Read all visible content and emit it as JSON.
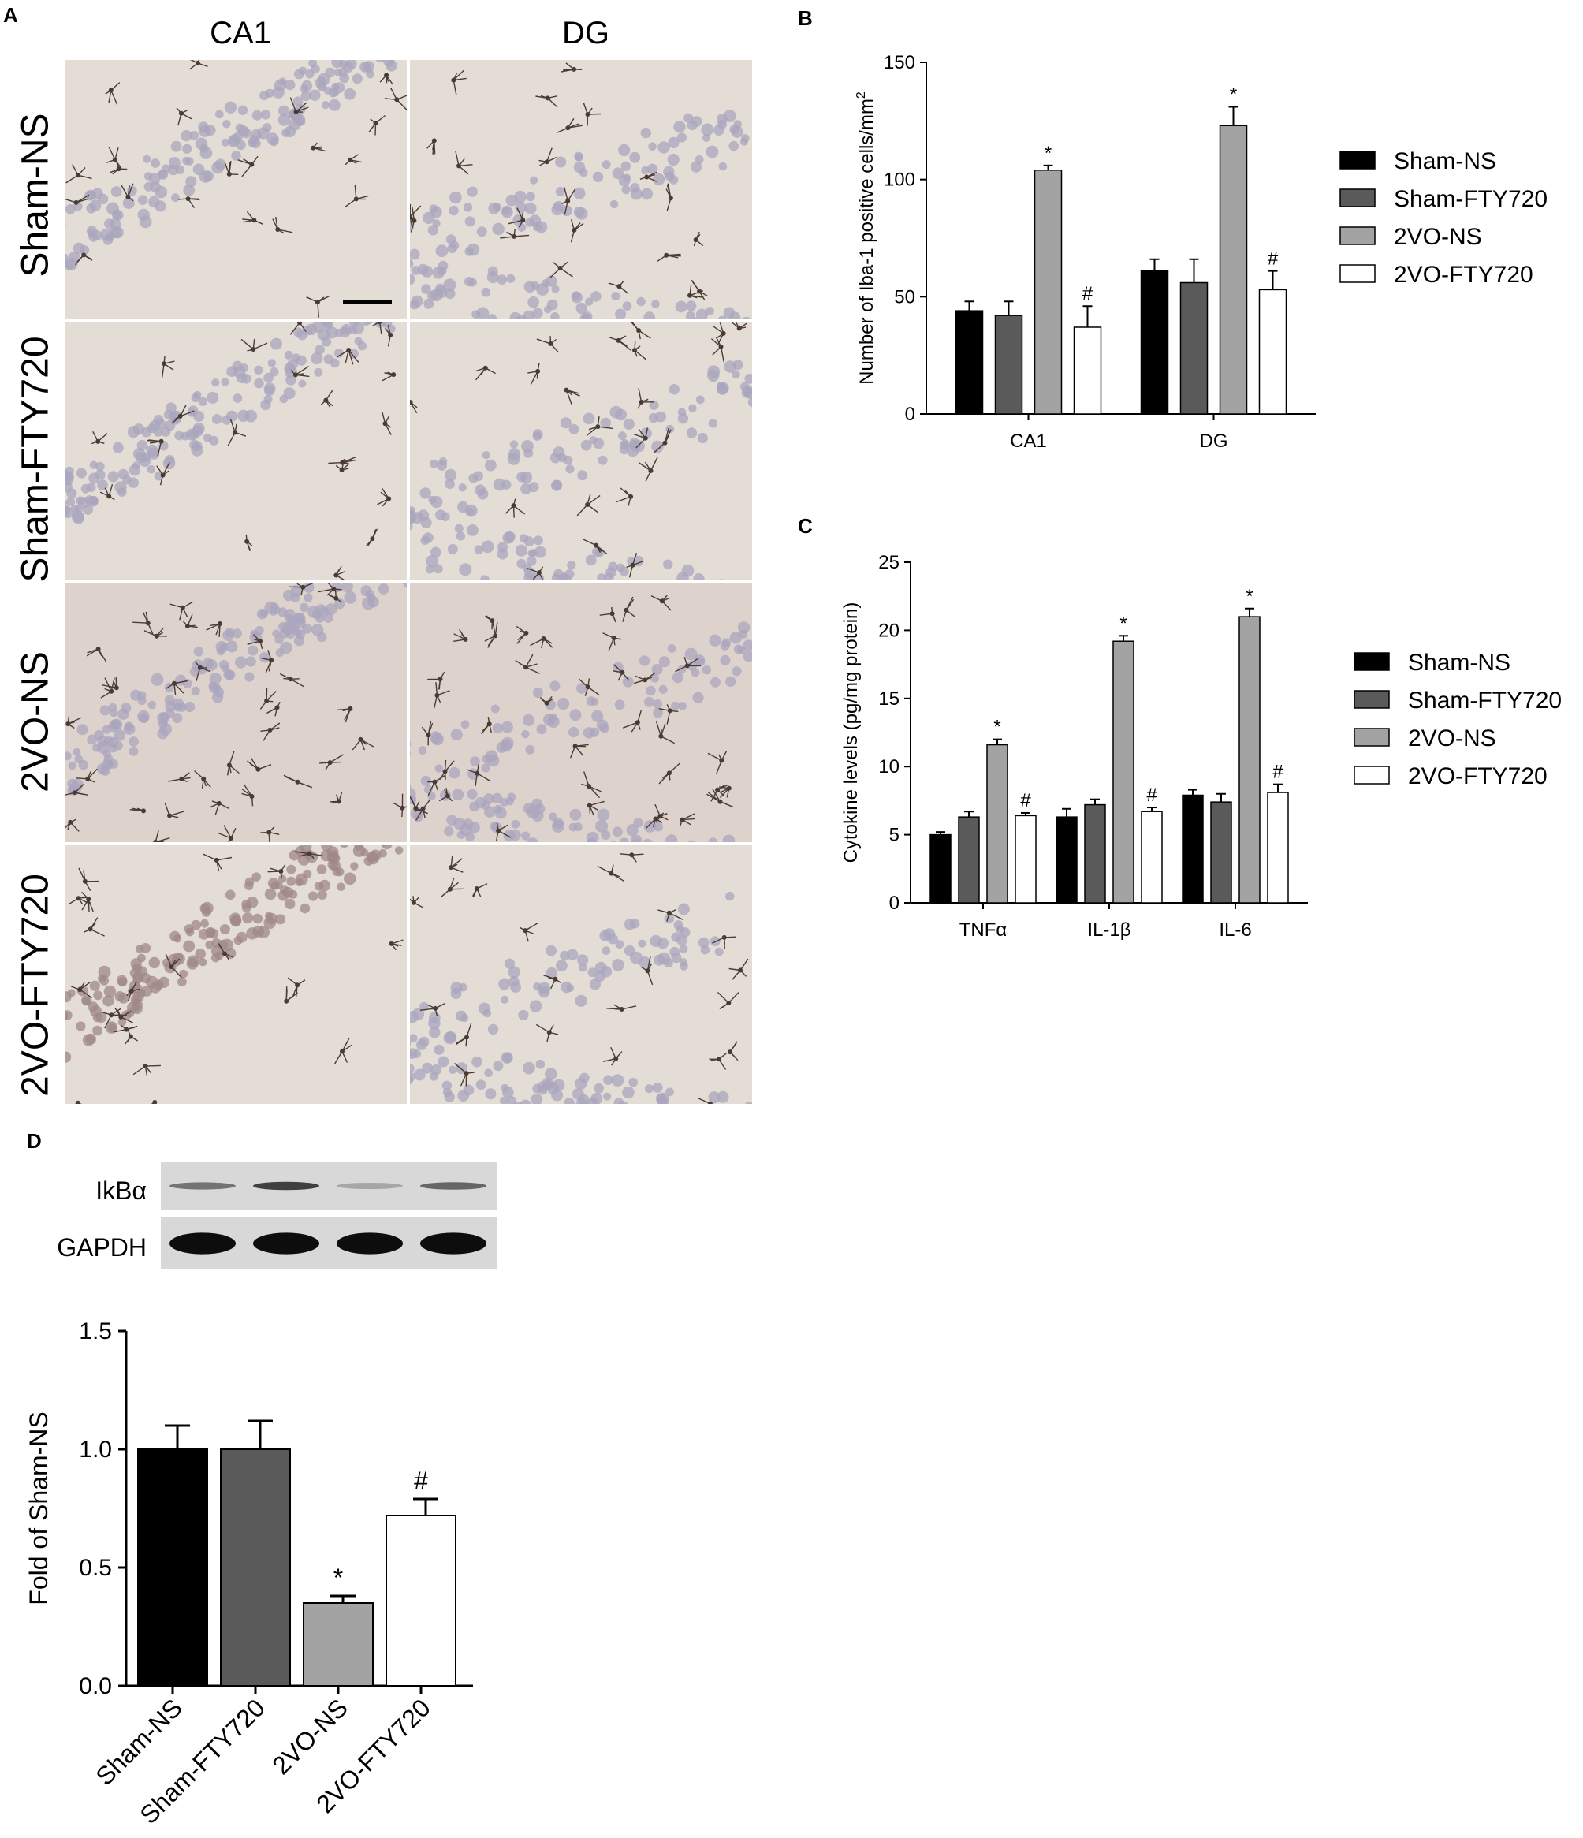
{
  "panel_a": {
    "letter": "A",
    "columns": [
      "CA1",
      "DG"
    ],
    "rows": [
      "Sham-NS",
      "Sham-FTY720",
      "2VO-NS",
      "2VO-FTY720"
    ]
  },
  "panel_d": {
    "letter": "D",
    "blot_labels": [
      "IkBα",
      "GAPDH"
    ],
    "ikba_band_intensity": [
      0.55,
      0.75,
      0.35,
      0.6
    ]
  },
  "colors": {
    "sham_ns": "#000000",
    "sham_fty720": "#5a5a5a",
    "vo_ns": "#a3a3a3",
    "vo_fty720": "#ffffff"
  },
  "chart_data": [
    {
      "id": "B",
      "letter": "B",
      "type": "bar",
      "ylabel": "Number of Iba-1 positive cells/mm",
      "ylabel_sup": "2",
      "ylim": [
        0,
        150
      ],
      "yticks": [
        0,
        50,
        100,
        150
      ],
      "categories": [
        "CA1",
        "DG"
      ],
      "legend": "right",
      "series": [
        {
          "name": "Sham-NS",
          "values": [
            44,
            61
          ],
          "errors": [
            4,
            5
          ],
          "marks": [
            "",
            ""
          ]
        },
        {
          "name": "Sham-FTY720",
          "values": [
            42,
            56
          ],
          "errors": [
            6,
            10
          ],
          "marks": [
            "",
            ""
          ]
        },
        {
          "name": "2VO-NS",
          "values": [
            104,
            123
          ],
          "errors": [
            2,
            8
          ],
          "marks": [
            "*",
            "*"
          ]
        },
        {
          "name": "2VO-FTY720",
          "values": [
            37,
            53
          ],
          "errors": [
            9,
            8
          ],
          "marks": [
            "#",
            "#"
          ]
        }
      ]
    },
    {
      "id": "C",
      "letter": "C",
      "type": "bar",
      "ylabel": "Cytokine levels (pg/mg protein)",
      "ylim": [
        0,
        25
      ],
      "yticks": [
        0,
        5,
        10,
        15,
        20,
        25
      ],
      "categories": [
        "TNFα",
        "IL-1β",
        "IL-6"
      ],
      "legend": "right",
      "series": [
        {
          "name": "Sham-NS",
          "values": [
            5.0,
            6.3,
            7.9
          ],
          "errors": [
            0.2,
            0.6,
            0.4
          ],
          "marks": [
            "",
            "",
            ""
          ]
        },
        {
          "name": "Sham-FTY720",
          "values": [
            6.3,
            7.2,
            7.4
          ],
          "errors": [
            0.4,
            0.4,
            0.6
          ],
          "marks": [
            "",
            "",
            ""
          ]
        },
        {
          "name": "2VO-NS",
          "values": [
            11.6,
            19.2,
            21.0
          ],
          "errors": [
            0.4,
            0.4,
            0.6
          ],
          "marks": [
            "*",
            "*",
            "*"
          ]
        },
        {
          "name": "2VO-FTY720",
          "values": [
            6.4,
            6.7,
            8.1
          ],
          "errors": [
            0.2,
            0.3,
            0.6
          ],
          "marks": [
            "#",
            "#",
            "#"
          ]
        }
      ]
    },
    {
      "id": "D",
      "letter": "",
      "type": "bar",
      "ylabel": "Fold of Sham-NS",
      "ylim": [
        0,
        1.5
      ],
      "yticks": [
        "0.0",
        "0.5",
        "1.0",
        "1.5"
      ],
      "categories": [
        "Sham-NS",
        "Sham-FTY720",
        "2VO-NS",
        "2VO-FTY720"
      ],
      "values": [
        1.0,
        1.0,
        0.35,
        0.72
      ],
      "errors": [
        0.1,
        0.12,
        0.03,
        0.07
      ],
      "marks": [
        "",
        "",
        "*",
        "#"
      ]
    }
  ]
}
